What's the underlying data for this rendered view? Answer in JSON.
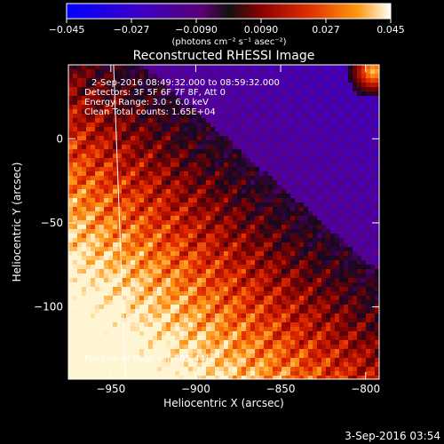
{
  "chart_data": {
    "type": "heatmap",
    "title": "Reconstructed RHESSI Image",
    "xlabel": "Heliocentric X (arcsec)",
    "ylabel": "Heliocentric Y (arcsec)",
    "xlim": [
      -975,
      -792
    ],
    "ylim": [
      -143,
      44
    ],
    "x_ticks": [
      -950,
      -900,
      -850,
      -800
    ],
    "y_ticks": [
      0,
      -50,
      -100
    ],
    "x_tick_labels": [
      "−950",
      "−900",
      "−850",
      "−800"
    ],
    "y_tick_labels": [
      "0",
      "−50",
      "−100"
    ],
    "colorbar": {
      "ticks": [
        -0.045,
        -0.027,
        -0.009,
        0.009,
        0.027,
        0.045
      ],
      "tick_labels": [
        "−0.045",
        "−0.027",
        "−0.0090",
        "0.0090",
        "0.027",
        "0.045"
      ],
      "range": [
        -0.045,
        0.045
      ],
      "unit_label": "(photons cm⁻² s⁻¹ asec⁻²)"
    },
    "annotations": [
      "2-Sep-2016 08:49:32.000 to 08:59:32.000",
      "Detectors: 3F 5F 6F 7F 8F, Att 0",
      "Energy Range: 3.0 - 6.0 keV",
      "Clean     Total counts: 1.65E+04"
    ],
    "peak_label": "Position of Peak = [-805,44]",
    "limb_line": [
      [
        -951,
        44
      ],
      [
        -944,
        -143
      ]
    ]
  },
  "footer_timestamp": "3-Sep-2016 03:54"
}
